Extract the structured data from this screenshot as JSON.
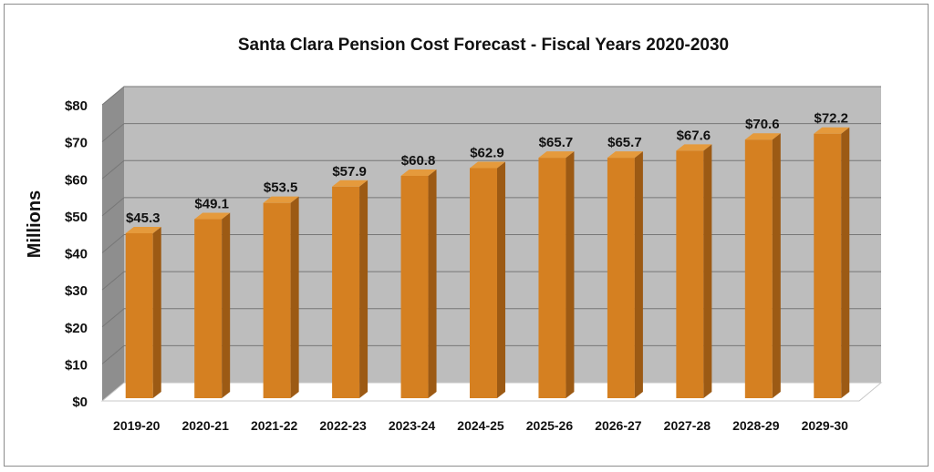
{
  "chart_data": {
    "type": "bar",
    "title": "Santa Clara Pension Cost Forecast - Fiscal Years 2020-2030",
    "xlabel": "",
    "ylabel": "Millions",
    "ylim": [
      0,
      80
    ],
    "yticks": [
      "$0",
      "$10",
      "$20",
      "$30",
      "$40",
      "$50",
      "$60",
      "$70",
      "$80"
    ],
    "ytick_values": [
      0,
      10,
      20,
      30,
      40,
      50,
      60,
      70,
      80
    ],
    "categories": [
      "2019-20",
      "2020-21",
      "2021-22",
      "2022-23",
      "2023-24",
      "2024-25",
      "2025-26",
      "2026-27",
      "2027-28",
      "2028-29",
      "2029-30"
    ],
    "values": [
      45.3,
      49.1,
      53.5,
      57.9,
      60.8,
      62.9,
      65.7,
      65.7,
      67.6,
      70.6,
      72.2
    ],
    "data_labels": [
      "$45.3",
      "$49.1",
      "$53.5",
      "$57.9",
      "$60.8",
      "$62.9",
      "$65.7",
      "$65.7",
      "$67.6",
      "$70.6",
      "$72.2"
    ],
    "grid": true,
    "legend": "none",
    "colors": {
      "bar_front": "#d58021",
      "bar_side": "#9c5a14",
      "bar_top": "#e59a3c",
      "plot_back": "#bdbdbd",
      "plot_side": "#8e8e8e",
      "gridline": "#777777"
    }
  }
}
